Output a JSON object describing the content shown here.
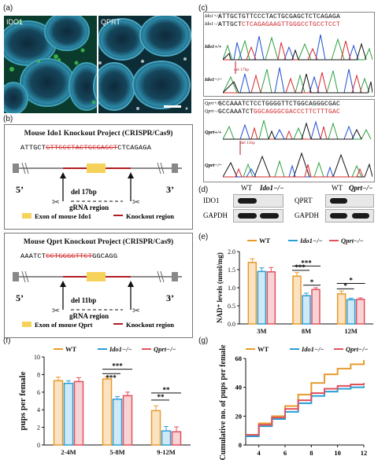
{
  "panels": {
    "a": "(a)",
    "b": "(b)",
    "c": "(c)",
    "d": "(d)",
    "e": "(e)",
    "f": "(f)",
    "g": "(g)"
  },
  "panel_a": {
    "left_label": "IDO1",
    "right_label": "QPRT"
  },
  "panel_b": {
    "box1": {
      "title": "Mouse Ido1 Knockout Project (CRISPR/Cas9)",
      "seq_left": "ATTGCT",
      "seq_red": "GTTCCCTACTGCGAGCT",
      "seq_right": "CTCAGAGA",
      "five": "5’",
      "three": "3’",
      "deletion": "del 17bp",
      "grna": "gRNA region",
      "legend_exon": "Exon of mouse Ido1",
      "legend_ko": "Knockout region"
    },
    "box2": {
      "title": "Mouse Qprt Knockout Project (CRISPR/Cas9)",
      "seq_left": "AAATCT",
      "seq_red": "CCTGGGGTTCT",
      "seq_right": "GGCAGG",
      "five": "5’",
      "three": "3’",
      "deletion": "del 11bp",
      "grna": "gRNA region",
      "legend_exon": "Exon of mouse Qprt",
      "legend_ko": "Knockout region"
    }
  },
  "panel_c": {
    "ido_wt_label": "Ido1+/+",
    "ido_ko_label": "Ido1−/−",
    "ido_wt_seq": "ATTGCTGTTCCCTACTGCGAGCTCTCAGAGA",
    "ido_ko_seq_black": "ATTGCT",
    "ido_ko_seq_red": "CTCAGAGAAGTTGGGCCTGCCTCCT",
    "ido_del": "del 17bp",
    "qprt_wt_label": "Qprt+/+",
    "qprt_ko_label": "Qprt−/−",
    "qprt_wt_seq": "GCCAAATCTCCTGGGGTTCTGGCAGGGCGAC",
    "qprt_ko_seq_black": "GCCAAATCT",
    "qprt_ko_seq_red": "GGCAGGGCGACCCTTCTTTGAC",
    "qprt_del": "del 11bp"
  },
  "panel_d": {
    "left": {
      "wt": "WT",
      "ko": "Ido1−/−",
      "row1": "IDO1",
      "row2": "GAPDH"
    },
    "right": {
      "wt": "WT",
      "ko": "Qprt−/−",
      "row1": "QPRT",
      "row2": "GAPDH"
    }
  },
  "legend": {
    "wt": "WT",
    "ido": "Ido1−/−",
    "qprt": "Qprt−/−"
  },
  "colors": {
    "wt": "#e89a2c",
    "ido": "#2a9fd6",
    "qprt": "#e0525c",
    "knockout": "#b11c22",
    "exon": "#f6d25a"
  },
  "chart_data": [
    {
      "panel": "e",
      "type": "bar",
      "categories": [
        "3M",
        "8M",
        "12M"
      ],
      "series": [
        {
          "name": "WT",
          "values": [
            1.7,
            1.32,
            0.83
          ]
        },
        {
          "name": "Ido1−/−",
          "values": [
            1.45,
            0.78,
            0.67
          ]
        },
        {
          "name": "Qprt−/−",
          "values": [
            1.44,
            0.95,
            0.68
          ]
        }
      ],
      "errors": [
        [
          0.1,
          0.1,
          0.08
        ],
        [
          0.1,
          0.07,
          0.04
        ],
        [
          0.12,
          0.05,
          0.04
        ]
      ],
      "ylabel": "NAD⁺ levels (nmol/mg)",
      "ylim": [
        0,
        2.0
      ],
      "yticks": [
        "0.0",
        "0.5",
        "1.0",
        "1.5",
        "2.0"
      ],
      "annotations": [
        "***",
        "***",
        "*",
        "*",
        "*"
      ],
      "legend": "top-right"
    },
    {
      "panel": "f",
      "type": "bar",
      "categories": [
        "2-4M",
        "5-8M",
        "9-12M"
      ],
      "series": [
        {
          "name": "WT",
          "values": [
            7.3,
            7.5,
            3.9
          ]
        },
        {
          "name": "Ido1−/−",
          "values": [
            7.0,
            5.2,
            1.6
          ]
        },
        {
          "name": "Qprt−/−",
          "values": [
            7.2,
            5.6,
            1.5
          ]
        }
      ],
      "errors": [
        [
          0.4,
          0.25,
          0.55
        ],
        [
          0.3,
          0.3,
          0.5
        ],
        [
          0.45,
          0.4,
          0.55
        ]
      ],
      "ylabel": "pups per female",
      "ylim": [
        0,
        10
      ],
      "yticks": [
        "0",
        "2",
        "4",
        "6",
        "8",
        "10"
      ],
      "annotations": [
        "***",
        "***",
        "**",
        "**"
      ],
      "legend": "top"
    },
    {
      "panel": "g",
      "type": "line",
      "x": [
        3,
        4,
        5,
        6,
        7,
        8,
        9,
        10,
        11,
        12
      ],
      "series": [
        {
          "name": "WT",
          "values": [
            7,
            15,
            20,
            27,
            35,
            43,
            49,
            53,
            56,
            59
          ]
        },
        {
          "name": "Ido1−/−",
          "values": [
            6,
            13,
            18,
            23,
            29,
            34,
            37,
            39,
            40,
            41
          ]
        },
        {
          "name": "Qprt−/−",
          "values": [
            7,
            14,
            19,
            25,
            31,
            36,
            39,
            41,
            42,
            43
          ]
        }
      ],
      "ylabel": "Cumulative no. of pups per female",
      "xlim": [
        3,
        12
      ],
      "ylim": [
        0,
        60
      ],
      "xticks": [
        "4",
        "6",
        "8",
        "10",
        "12"
      ],
      "yticks": [
        "0",
        "20",
        "40",
        "60"
      ],
      "legend": "top"
    }
  ]
}
